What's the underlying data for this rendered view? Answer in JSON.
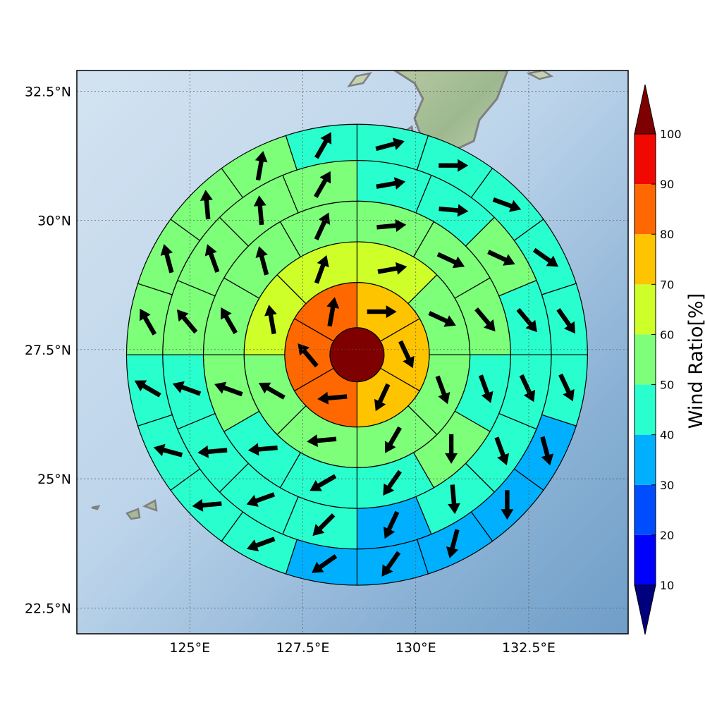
{
  "chart_data": {
    "type": "polar-sector-map",
    "projection": "plate-carree",
    "extent": {
      "lon": [
        122.5,
        134.7
      ],
      "lat": [
        22.0,
        32.9
      ]
    },
    "gridlines": true,
    "x_ticks": [
      {
        "value": 125.0,
        "label": "125°E"
      },
      {
        "value": 127.5,
        "label": "127.5°E"
      },
      {
        "value": 130.0,
        "label": "130°E"
      },
      {
        "value": 132.5,
        "label": "132.5°E"
      }
    ],
    "y_ticks": [
      {
        "value": 22.5,
        "label": "22.5°N"
      },
      {
        "value": 25.0,
        "label": "25°N"
      },
      {
        "value": 27.5,
        "label": "27.5°N"
      },
      {
        "value": 30.0,
        "label": "30°N"
      },
      {
        "value": 32.5,
        "label": "32.5°N"
      }
    ],
    "center": {
      "lon": 128.7,
      "lat": 27.4
    },
    "ring_radii_deg": [
      0.6,
      1.6,
      2.5,
      3.4,
      4.3,
      5.1
    ],
    "colorbar": {
      "label": "Wind Ratio[%]",
      "ticks": [
        10,
        20,
        30,
        40,
        50,
        60,
        70,
        80,
        90,
        100
      ],
      "levels": [
        {
          "from": 0,
          "to": 10,
          "color": "#00007f"
        },
        {
          "from": 10,
          "to": 20,
          "color": "#0000ff"
        },
        {
          "from": 20,
          "to": 30,
          "color": "#004cff"
        },
        {
          "from": 30,
          "to": 40,
          "color": "#00b0ff"
        },
        {
          "from": 40,
          "to": 50,
          "color": "#29ffce"
        },
        {
          "from": 50,
          "to": 60,
          "color": "#7dff7a"
        },
        {
          "from": 60,
          "to": 70,
          "color": "#ceff29"
        },
        {
          "from": 70,
          "to": 80,
          "color": "#ffc400"
        },
        {
          "from": 80,
          "to": 90,
          "color": "#ff6800"
        },
        {
          "from": 90,
          "to": 100,
          "color": "#f10800"
        },
        {
          "from": 100,
          "to": 110,
          "color": "#7f0000"
        }
      ]
    },
    "rings": [
      {
        "ring": 0,
        "sectors": 1,
        "values": [
          100
        ]
      },
      {
        "ring": 1,
        "sectors": 6,
        "values": [
          75,
          75,
          75,
          85,
          85,
          85
        ],
        "wind_dir_deg": [
          90,
          155,
          205,
          265,
          320,
          10
        ]
      },
      {
        "ring": 2,
        "sectors": 8,
        "values": [
          65,
          55,
          55,
          55,
          55,
          55,
          65,
          65
        ],
        "wind_dir_deg": [
          80,
          115,
          160,
          210,
          265,
          300,
          350,
          20
        ]
      },
      {
        "ring": 3,
        "sectors": 12,
        "values": [
          55,
          55,
          55,
          45,
          55,
          45,
          45,
          45,
          55,
          55,
          55,
          55
        ],
        "wind_dir_deg": [
          85,
          115,
          140,
          160,
          180,
          215,
          240,
          265,
          290,
          330,
          345,
          25
        ]
      },
      {
        "ring": 4,
        "sectors": 16,
        "values": [
          45,
          45,
          55,
          45,
          45,
          45,
          45,
          35,
          45,
          45,
          45,
          45,
          55,
          55,
          55,
          55
        ],
        "wind_dir_deg": [
          80,
          95,
          115,
          140,
          155,
          160,
          175,
          205,
          225,
          250,
          265,
          290,
          320,
          340,
          355,
          30
        ]
      },
      {
        "ring": 5,
        "sectors": 20,
        "values": [
          45,
          45,
          45,
          45,
          45,
          45,
          35,
          35,
          35,
          35,
          35,
          45,
          45,
          45,
          45,
          55,
          55,
          55,
          55,
          45
        ],
        "wind_dir_deg": [
          75,
          90,
          110,
          125,
          145,
          155,
          165,
          180,
          195,
          215,
          235,
          250,
          265,
          285,
          300,
          330,
          345,
          355,
          10,
          30
        ]
      },
      {
        "ring": 6,
        "sectors": 24,
        "values": [
          45,
          45,
          45,
          45,
          45,
          45,
          45,
          35,
          35,
          35,
          35,
          35,
          35,
          35,
          35,
          35,
          35,
          45,
          45,
          45,
          45,
          45,
          45,
          45
        ],
        "wind_dir_deg": [
          80,
          85,
          105,
          115,
          130,
          145,
          160,
          170,
          175,
          185,
          200,
          215,
          235,
          250,
          260,
          280,
          295,
          310,
          325,
          340,
          350,
          355,
          15,
          30
        ]
      }
    ]
  }
}
